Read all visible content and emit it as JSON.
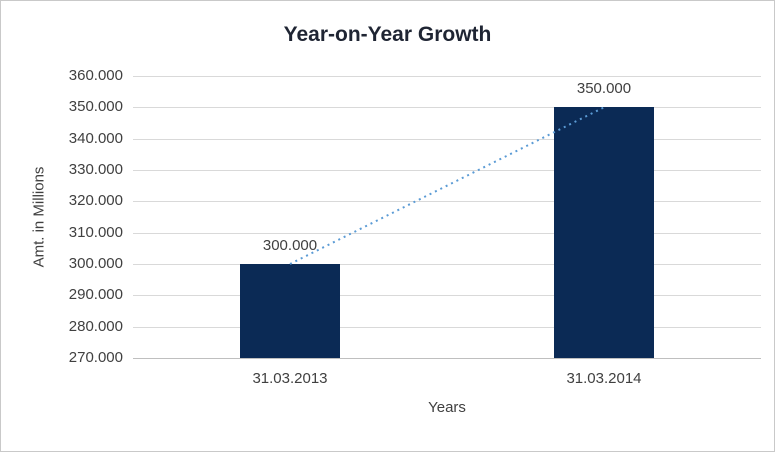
{
  "chart_data": {
    "type": "bar",
    "title": "Year-on-Year Growth",
    "xlabel": "Years",
    "ylabel": "Amt. in Millions",
    "categories": [
      "31.03.2013",
      "31.03.2014"
    ],
    "values": [
      300000,
      350000
    ],
    "data_labels": [
      "300.000",
      "350.000"
    ],
    "ylim": [
      270000,
      360000
    ],
    "ytick_step": 10000,
    "ytick_labels": [
      "270.000",
      "280.000",
      "290.000",
      "300.000",
      "310.000",
      "320.000",
      "330.000",
      "340.000",
      "350.000",
      "360.000"
    ],
    "grid": true,
    "legend": false,
    "trendline": {
      "type": "linear",
      "style": "dotted",
      "connects": "bar tops"
    }
  },
  "style": {
    "bar_color": "#0b2a55",
    "trendline_color": "#5b9bd5",
    "gridline_color": "#d9d9d9",
    "axis_line_color": "#bfbfbf",
    "title_color": "#1f2533",
    "label_color": "#404040",
    "border_color": "#c9c9c9",
    "background": "#ffffff"
  }
}
